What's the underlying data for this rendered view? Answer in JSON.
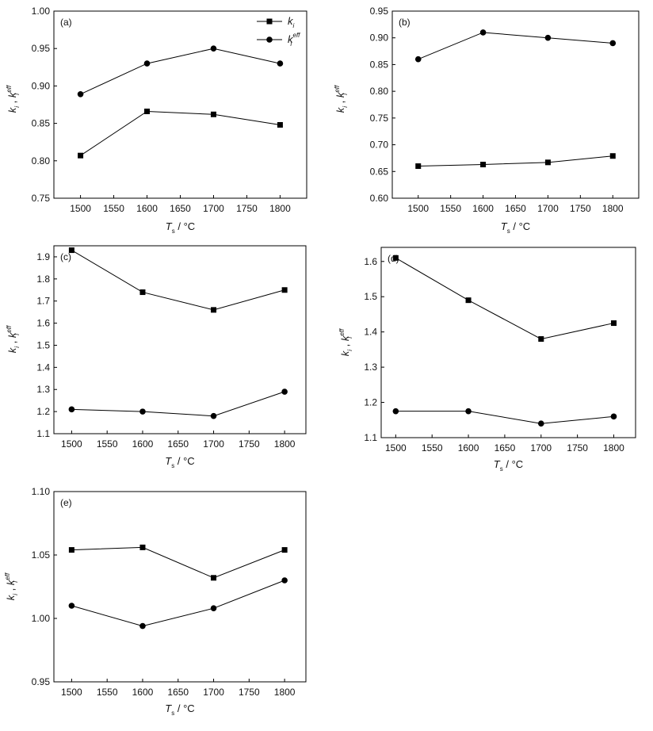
{
  "chart_data": [
    {
      "type": "line",
      "panel_label": "(a)",
      "x": [
        1500,
        1600,
        1700,
        1800
      ],
      "xlim": [
        1460,
        1840
      ],
      "xticks": [
        "1500",
        "1550",
        "1600",
        "1650",
        "1700",
        "1750",
        "1800"
      ],
      "xlabel": {
        "main": "T",
        "sub": "s",
        "rest": " / °C"
      },
      "ylabel": {
        "a": "k",
        "a_sub": "i",
        "sep": " , ",
        "b": "k",
        "b_sub": "i",
        "b_sup": "eff"
      },
      "ylim": [
        0.75,
        1.0
      ],
      "yticks": [
        "0.75",
        "0.80",
        "0.85",
        "0.90",
        "0.95",
        "1.00"
      ],
      "legend": {
        "show": true,
        "position": "top-right"
      },
      "series": [
        {
          "name": "k_i",
          "label": "k",
          "label_sub": "i",
          "marker": "square",
          "values": [
            0.807,
            0.866,
            0.862,
            0.848
          ]
        },
        {
          "name": "k_i^eff",
          "label": "k",
          "label_sub": "i",
          "label_sup": "eff",
          "marker": "circle",
          "values": [
            0.889,
            0.93,
            0.95,
            0.93
          ]
        }
      ]
    },
    {
      "type": "line",
      "panel_label": "(b)",
      "x": [
        1500,
        1600,
        1700,
        1800
      ],
      "xlim": [
        1460,
        1840
      ],
      "xticks": [
        "1500",
        "1550",
        "1600",
        "1650",
        "1700",
        "1750",
        "1800"
      ],
      "xlabel": {
        "main": "T",
        "sub": "s",
        "rest": " / °C"
      },
      "ylabel": {
        "a": "k",
        "a_sub": "i",
        "sep": " , ",
        "b": "k",
        "b_sub": "i",
        "b_sup": "eff"
      },
      "ylim": [
        0.6,
        0.95
      ],
      "yticks": [
        "0.60",
        "0.65",
        "0.70",
        "0.75",
        "0.80",
        "0.85",
        "0.90",
        "0.95"
      ],
      "legend": {
        "show": false
      },
      "series": [
        {
          "marker": "square",
          "values": [
            0.66,
            0.663,
            0.667,
            0.679
          ]
        },
        {
          "marker": "circle",
          "values": [
            0.86,
            0.91,
            0.9,
            0.89
          ]
        }
      ]
    },
    {
      "type": "line",
      "panel_label": "(c)",
      "x": [
        1500,
        1600,
        1700,
        1800
      ],
      "xlim": [
        1475,
        1830
      ],
      "xticks": [
        "1500",
        "1550",
        "1600",
        "1650",
        "1700",
        "1750",
        "1800"
      ],
      "xlabel": {
        "main": "T",
        "sub": "s",
        "rest": " / °C"
      },
      "ylabel": {
        "a": "k",
        "a_sub": "i",
        "sep": " , ",
        "b": "k",
        "b_sub": "i",
        "b_sup": "eff"
      },
      "ylim": [
        1.1,
        1.95
      ],
      "yticks": [
        "1.1",
        "1.2",
        "1.3",
        "1.4",
        "1.5",
        "1.6",
        "1.7",
        "1.8",
        "1.9"
      ],
      "legend": {
        "show": false
      },
      "series": [
        {
          "marker": "square",
          "values": [
            1.93,
            1.74,
            1.66,
            1.75
          ]
        },
        {
          "marker": "circle",
          "values": [
            1.21,
            1.2,
            1.18,
            1.29
          ]
        }
      ]
    },
    {
      "type": "line",
      "panel_label": "(d)",
      "x": [
        1500,
        1600,
        1700,
        1800
      ],
      "xlim": [
        1480,
        1830
      ],
      "xticks": [
        "1500",
        "1550",
        "1600",
        "1650",
        "1700",
        "1750",
        "1800"
      ],
      "xlabel": {
        "main": "T",
        "sub": "s",
        "rest": " / °C"
      },
      "ylabel": {
        "a": "k",
        "a_sub": "i",
        "sep": " , ",
        "b": "k",
        "b_sub": "i",
        "b_sup": "eff"
      },
      "ylim": [
        1.1,
        1.64
      ],
      "yticks": [
        "1.1",
        "1.2",
        "1.3",
        "1.4",
        "1.5",
        "1.6"
      ],
      "legend": {
        "show": false
      },
      "series": [
        {
          "marker": "square",
          "values": [
            1.61,
            1.49,
            1.38,
            1.425
          ]
        },
        {
          "marker": "circle",
          "values": [
            1.175,
            1.175,
            1.14,
            1.16
          ]
        }
      ]
    },
    {
      "type": "line",
      "panel_label": "(e)",
      "x": [
        1500,
        1600,
        1700,
        1800
      ],
      "xlim": [
        1475,
        1830
      ],
      "xticks": [
        "1500",
        "1550",
        "1600",
        "1650",
        "1700",
        "1750",
        "1800"
      ],
      "xlabel": {
        "main": "T",
        "sub": "s",
        "rest": " / °C"
      },
      "ylabel": {
        "a": "k",
        "a_sub": "i",
        "sep": " , ",
        "b": "k",
        "b_sub": "i",
        "b_sup": "eff"
      },
      "ylim": [
        0.95,
        1.1
      ],
      "yticks": [
        "0.95",
        "1.00",
        "1.05",
        "1.10"
      ],
      "legend": {
        "show": false
      },
      "series": [
        {
          "marker": "square",
          "values": [
            1.054,
            1.056,
            1.032,
            1.054
          ]
        },
        {
          "marker": "circle",
          "values": [
            1.01,
            0.994,
            1.008,
            1.03
          ]
        }
      ]
    }
  ]
}
